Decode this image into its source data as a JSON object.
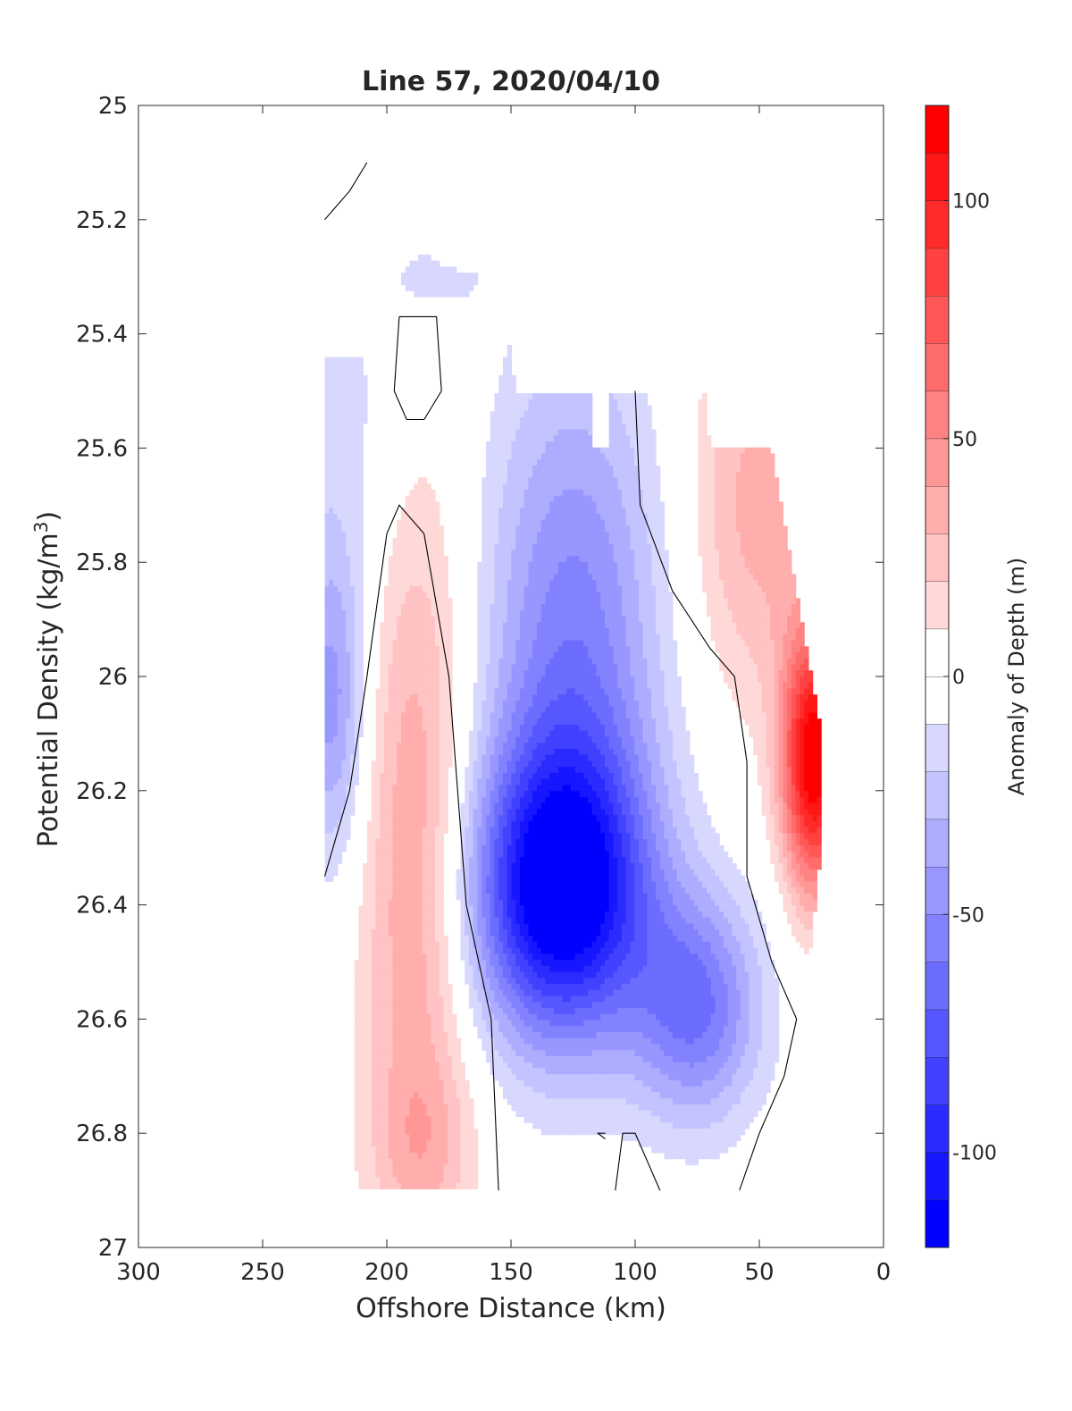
{
  "chart_data": {
    "type": "heatmap",
    "subtype": "filled-contour",
    "title": "Line 57, 2020/04/10",
    "xlabel": "Offshore Distance (km)",
    "ylabel_main": "Potential Density (kg/m",
    "ylabel_sup": "3",
    "ylabel_close": ")",
    "colorbar_label": "Anomaly of Depth (m)",
    "xlim": [
      300,
      0
    ],
    "ylim": [
      25,
      27
    ],
    "x_reversed": true,
    "y_reversed": true,
    "xticks": [
      300,
      250,
      200,
      150,
      100,
      50,
      0
    ],
    "xtick_labels": [
      "300",
      "250",
      "200",
      "150",
      "100",
      "50",
      "0"
    ],
    "yticks": [
      25,
      25.2,
      25.4,
      25.6,
      25.8,
      26,
      26.2,
      26.4,
      26.6,
      26.8,
      27
    ],
    "ytick_labels": [
      "25",
      "25.2",
      "25.4",
      "25.6",
      "25.8",
      "26",
      "26.2",
      "26.4",
      "26.6",
      "26.8",
      "27"
    ],
    "colorbar": {
      "range": [
        -120,
        120
      ],
      "step": 10,
      "ticks": [
        -100,
        -50,
        0,
        50,
        100
      ],
      "tick_labels": [
        "-100",
        "-50",
        "0",
        "50",
        "100"
      ],
      "colormap": "blue-white-red"
    },
    "grid": false,
    "zero_contour_color": "#000000",
    "fields": [
      {
        "name": "nearshore-positive",
        "x": 28,
        "y": 26.15,
        "sx": 9,
        "sy": 0.16,
        "amp": 120
      },
      {
        "name": "nearshore-positive-upper",
        "x": 50,
        "y": 25.7,
        "sx": 20,
        "sy": 0.25,
        "amp": 35
      },
      {
        "name": "offshore-positive",
        "x": 188,
        "y": 26.35,
        "sx": 16,
        "sy": 0.5,
        "amp": 42
      },
      {
        "name": "offshore-positive-deep",
        "x": 185,
        "y": 26.82,
        "sx": 14,
        "sy": 0.1,
        "amp": 15
      },
      {
        "name": "central-negative",
        "x": 130,
        "y": 26.38,
        "sx": 25,
        "sy": 0.18,
        "amp": -115
      },
      {
        "name": "central-negative-upper",
        "x": 125,
        "y": 25.95,
        "sx": 25,
        "sy": 0.35,
        "amp": -55
      },
      {
        "name": "deep-negative",
        "x": 75,
        "y": 26.58,
        "sx": 18,
        "sy": 0.14,
        "amp": -60
      },
      {
        "name": "offshore-negative",
        "x": 222,
        "y": 26.05,
        "sx": 10,
        "sy": 0.2,
        "amp": -45
      },
      {
        "name": "offshore-negative-upper",
        "x": 215,
        "y": 25.55,
        "sx": 18,
        "sy": 0.25,
        "amp": -15
      },
      {
        "name": "shallow-negative",
        "x": 180,
        "y": 25.3,
        "sx": 15,
        "sy": 0.06,
        "amp": -15
      }
    ],
    "coverage": [
      [
        225,
        25.44
      ],
      [
        210,
        25.44
      ],
      [
        200,
        25.35
      ],
      [
        188,
        25.25
      ],
      [
        178,
        25.28
      ],
      [
        160,
        25.3
      ],
      [
        155,
        25.3
      ],
      [
        148,
        25.5
      ],
      [
        118,
        25.5
      ],
      [
        118,
        25.6
      ],
      [
        110,
        25.6
      ],
      [
        110,
        25.5
      ],
      [
        72,
        25.5
      ],
      [
        70,
        25.6
      ],
      [
        45,
        25.6
      ],
      [
        35,
        25.85
      ],
      [
        25,
        26.1
      ],
      [
        25,
        26.3
      ],
      [
        30,
        26.5
      ],
      [
        30,
        26.6
      ],
      [
        35,
        26.8
      ],
      [
        35,
        26.9
      ],
      [
        225,
        26.9
      ]
    ],
    "zero_contours": [
      [
        [
          225,
          25.2
        ],
        [
          215,
          25.15
        ],
        [
          208,
          25.1
        ]
      ],
      [
        [
          195,
          25.37
        ],
        [
          180,
          25.37
        ],
        [
          178,
          25.5
        ],
        [
          185,
          25.55
        ],
        [
          192,
          25.55
        ],
        [
          197,
          25.5
        ],
        [
          195,
          25.37
        ]
      ],
      [
        [
          225,
          26.35
        ],
        [
          215,
          26.2
        ],
        [
          208,
          26.0
        ],
        [
          200,
          25.75
        ],
        [
          195,
          25.7
        ],
        [
          185,
          25.75
        ],
        [
          175,
          26.0
        ],
        [
          168,
          26.4
        ],
        [
          158,
          26.6
        ],
        [
          155,
          26.9
        ]
      ],
      [
        [
          100,
          25.5
        ],
        [
          98,
          25.7
        ],
        [
          85,
          25.85
        ],
        [
          70,
          25.95
        ],
        [
          60,
          26.0
        ],
        [
          55,
          26.15
        ],
        [
          55,
          26.35
        ],
        [
          45,
          26.5
        ],
        [
          35,
          26.6
        ],
        [
          40,
          26.7
        ],
        [
          50,
          26.8
        ],
        [
          58,
          26.9
        ]
      ],
      [
        [
          90,
          26.9
        ],
        [
          100,
          26.8
        ],
        [
          105,
          26.8
        ],
        [
          108,
          26.9
        ]
      ],
      [
        [
          112,
          26.8
        ],
        [
          115,
          26.8
        ],
        [
          112,
          26.81
        ]
      ]
    ]
  }
}
